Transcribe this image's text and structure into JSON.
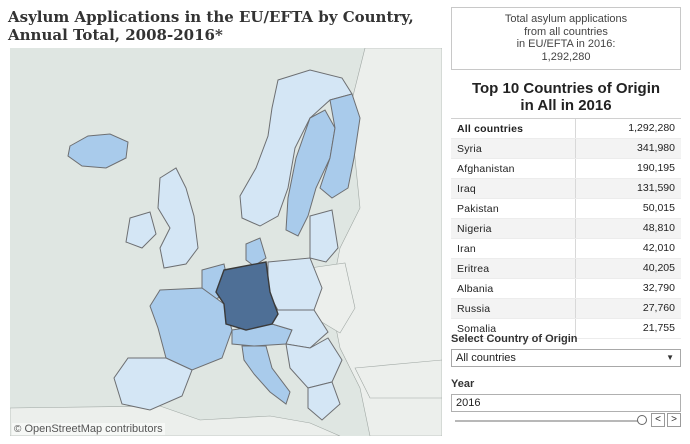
{
  "title": "Asylum Applications in the EU/EFTA by Country, Annual Total, 2008-2016*",
  "total_box": {
    "line1": "Total asylum applications",
    "line2": "from all countries",
    "line3": "in EU/EFTA in 2016:",
    "value": "1,292,280"
  },
  "top10": {
    "title_line1": "Top 10 Countries of Origin",
    "title_line2": "in All in 2016",
    "rows": [
      {
        "name": "All countries",
        "value": "1,292,280"
      },
      {
        "name": "Syria",
        "value": "341,980"
      },
      {
        "name": "Afghanistan",
        "value": "190,195"
      },
      {
        "name": "Iraq",
        "value": "131,590"
      },
      {
        "name": "Pakistan",
        "value": "50,015"
      },
      {
        "name": "Nigeria",
        "value": "48,810"
      },
      {
        "name": "Iran",
        "value": "42,010"
      },
      {
        "name": "Eritrea",
        "value": "40,205"
      },
      {
        "name": "Albania",
        "value": "32,790"
      },
      {
        "name": "Russia",
        "value": "27,760"
      },
      {
        "name": "Somalia",
        "value": "21,755"
      }
    ]
  },
  "filters": {
    "origin_label": "Select Country of Origin",
    "origin_value": "All countries",
    "year_label": "Year",
    "year_value": "2016",
    "year_slider_fraction": 1.0,
    "prev_symbol": "<",
    "next_symbol": ">",
    "dropdown_icon": "chevron-down-icon"
  },
  "map": {
    "attribution_symbol": "©",
    "attribution_text": "OpenStreetMap contributors",
    "colors": {
      "sea": "#dfe6e2",
      "non_member_land": "#ecefec",
      "light": "#d4e6f5",
      "medium": "#a9cbeb",
      "dark": "#4e6f96"
    }
  }
}
